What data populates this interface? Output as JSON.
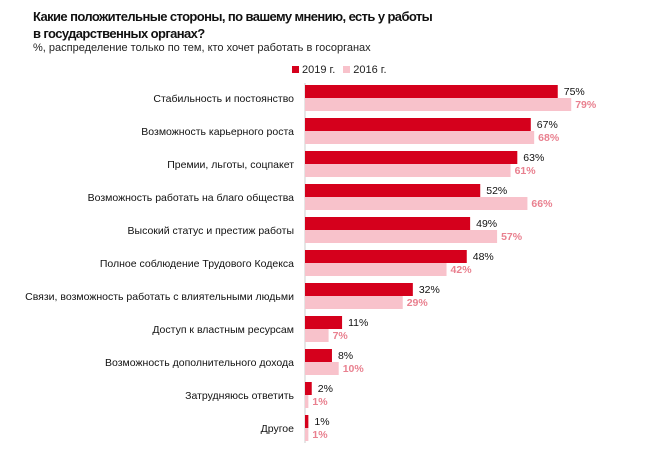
{
  "chart_data": {
    "type": "bar",
    "orientation": "horizontal",
    "title": "Какие положительные стороны, по вашему мнению, есть у работы в государственных органах?",
    "subtitle": "%, распределение только по тем, кто хочет работать в госорганах",
    "categories": [
      "Стабильность и постоянство",
      "Возможность карьерного роста",
      "Премии, льготы, соцпакет",
      "Возможность работать на благо общества",
      "Высокий статус и престиж работы",
      "Полное соблюдение Трудового Кодекса",
      "Связи, возможность работать с влиятельными людьми",
      "Доступ к властным ресурсам",
      "Возможность дополнительного дохода",
      "Затрудняюсь ответить",
      "Другое"
    ],
    "series": [
      {
        "name": "2019 г.",
        "color": "#d5001c",
        "label_color": "#111111",
        "values": [
          75,
          67,
          63,
          52,
          49,
          48,
          32,
          11,
          8,
          2,
          1
        ]
      },
      {
        "name": "2016 г.",
        "color": "#f8c2cb",
        "label_color": "#e9808f",
        "values": [
          79,
          68,
          61,
          66,
          57,
          42,
          29,
          7,
          10,
          1,
          1
        ]
      }
    ],
    "value_suffix": "%",
    "legend": "top-right",
    "grid": false
  }
}
